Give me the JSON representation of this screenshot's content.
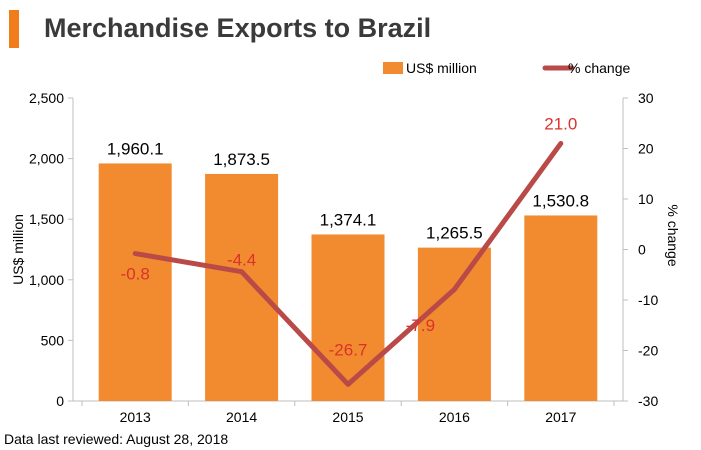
{
  "title": "Merchandise Exports to Brazil",
  "footnote": "Data last reviewed: August 28, 2018",
  "colors": {
    "accent": "#F07D1A",
    "bar": "#F28A30",
    "line": "#B94A48",
    "line_label": "#D9342B",
    "text": "#000000"
  },
  "chart_data": {
    "type": "bar",
    "categories": [
      "2013",
      "2014",
      "2015",
      "2016",
      "2017"
    ],
    "series": [
      {
        "name": "US$ million",
        "type": "bar",
        "axis": "left",
        "values": [
          1960.1,
          1873.5,
          1374.1,
          1265.5,
          1530.8
        ],
        "labels": [
          "1,960.1",
          "1,873.5",
          "1,374.1",
          "1,265.5",
          "1,530.8"
        ]
      },
      {
        "name": "% change",
        "type": "line",
        "axis": "right",
        "values": [
          -0.8,
          -4.4,
          -26.7,
          -7.9,
          21.0
        ],
        "labels": [
          "-0.8",
          "-4.4",
          "-26.7",
          "-7.9",
          "21.0"
        ]
      }
    ],
    "ylabel": "US$ million",
    "ylabel_right": "% change",
    "ylim": [
      0,
      2500
    ],
    "ylim_right": [
      -30,
      30
    ],
    "yticks": [
      "0",
      "500",
      "1,000",
      "1,500",
      "2,000",
      "2,500"
    ],
    "yticks_right": [
      "-30",
      "-20",
      "-10",
      "0",
      "10",
      "20",
      "30"
    ],
    "legend_position": "top-right",
    "grid": false
  }
}
